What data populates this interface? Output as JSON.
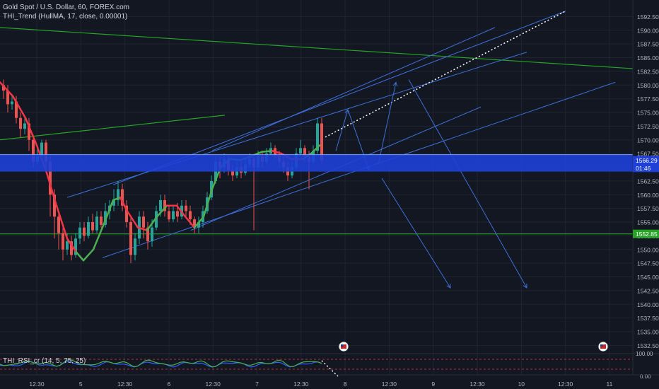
{
  "legend": {
    "symbol": "Gold Spot / U.S. Dollar, 60, FOREX.com",
    "indicator": "THI_Trend (HullMA, 17, close, 0.00001)",
    "rsi": "THI_RSI_cr (14, 5, 75, 25)"
  },
  "colors": {
    "background": "#131722",
    "grid": "#1f2433",
    "up": "#26a69a",
    "down": "#ef5350",
    "hull_up": "#4caf50",
    "hull_down": "#f23645",
    "channel": "#3d6fd6",
    "zone": "#1e40d8",
    "green_line": "#27a327",
    "rsi_blue": "#2962ff",
    "rsi_green": "#4caf50"
  },
  "chart_data": {
    "type": "candlestick",
    "y_range": [
      1531,
      1595
    ],
    "y_ticks": [
      "1592.50",
      "1590.00",
      "1587.50",
      "1585.00",
      "1582.50",
      "1580.00",
      "1577.50",
      "1575.00",
      "1572.50",
      "1570.00",
      "1567.50",
      "1565.00",
      "1562.50",
      "1560.00",
      "1557.50",
      "1555.00",
      "1552.50",
      "1550.00",
      "1547.50",
      "1545.00",
      "1542.50",
      "1540.00",
      "1537.50",
      "1535.00",
      "1532.50"
    ],
    "x_ticks": [
      "12:30",
      "5",
      "12:30",
      "6",
      "12:30",
      "7",
      "12:30",
      "8",
      "12:30",
      "9",
      "12:30",
      "10",
      "12:30",
      "11"
    ],
    "price_labels": [
      {
        "text": "1566.29",
        "value": 1566.29
      },
      {
        "text": "01:46",
        "value": 1564.9
      },
      {
        "text": "1552.85",
        "value": 1552.85
      }
    ],
    "rsi_axis_label": "100.00",
    "rsi_axis_label_low": "0.00",
    "candles": [
      [
        1580,
        1579,
        1577.5,
        1581
      ],
      [
        1579,
        1576.5,
        1575,
        1580
      ],
      [
        1576.5,
        1577,
        1575.5,
        1578
      ],
      [
        1577,
        1574,
        1573,
        1578
      ],
      [
        1574,
        1572,
        1570.5,
        1575
      ],
      [
        1572,
        1573,
        1571,
        1574
      ],
      [
        1573,
        1570,
        1568,
        1574
      ],
      [
        1570,
        1566,
        1565,
        1571
      ],
      [
        1566,
        1567,
        1565.5,
        1568.5
      ],
      [
        1567,
        1569.5,
        1566.5,
        1570
      ],
      [
        1569.5,
        1566,
        1564,
        1570
      ],
      [
        1566,
        1560,
        1556,
        1567
      ],
      [
        1560,
        1556,
        1552,
        1561
      ],
      [
        1556,
        1553,
        1550,
        1557
      ],
      [
        1553,
        1550,
        1548,
        1554
      ],
      [
        1550,
        1551.5,
        1549,
        1553
      ],
      [
        1551.5,
        1549,
        1548,
        1552.5
      ],
      [
        1549,
        1552,
        1548.5,
        1553
      ],
      [
        1552,
        1554,
        1551,
        1555
      ],
      [
        1554,
        1552.5,
        1551.5,
        1555
      ],
      [
        1552.5,
        1555,
        1552,
        1556
      ],
      [
        1555,
        1553.5,
        1553,
        1556.5
      ],
      [
        1553.5,
        1556,
        1553,
        1557
      ],
      [
        1556,
        1554.5,
        1554,
        1557
      ],
      [
        1554.5,
        1557,
        1554,
        1558.5
      ],
      [
        1557,
        1558,
        1555.5,
        1559
      ],
      [
        1558,
        1559,
        1557,
        1561
      ],
      [
        1559,
        1561,
        1558,
        1562.5
      ],
      [
        1561,
        1558,
        1557,
        1562
      ],
      [
        1558,
        1555,
        1554,
        1559
      ],
      [
        1555,
        1549,
        1547.5,
        1556
      ],
      [
        1549,
        1552,
        1548,
        1553
      ],
      [
        1552,
        1556,
        1551,
        1557
      ],
      [
        1556,
        1554,
        1552,
        1557
      ],
      [
        1554,
        1551.5,
        1550,
        1555
      ],
      [
        1551.5,
        1554,
        1550.5,
        1555.5
      ],
      [
        1554,
        1557,
        1553.5,
        1558
      ],
      [
        1557,
        1559,
        1556,
        1560
      ],
      [
        1559,
        1557,
        1556,
        1560
      ],
      [
        1557,
        1555.5,
        1555,
        1558
      ],
      [
        1555.5,
        1557,
        1555,
        1558
      ],
      [
        1557,
        1556,
        1555,
        1558.5
      ],
      [
        1556,
        1558,
        1555.5,
        1559
      ],
      [
        1558,
        1557,
        1556,
        1559
      ],
      [
        1557,
        1555.5,
        1554.5,
        1558
      ],
      [
        1555.5,
        1554,
        1553,
        1556
      ],
      [
        1554,
        1555,
        1553,
        1556
      ],
      [
        1555,
        1557,
        1554,
        1558
      ],
      [
        1557,
        1559.5,
        1556.5,
        1560.5
      ],
      [
        1559.5,
        1562.5,
        1559,
        1563.5
      ],
      [
        1562.5,
        1566,
        1562,
        1567
      ],
      [
        1566,
        1565,
        1563,
        1567
      ],
      [
        1565,
        1566.5,
        1564,
        1567.5
      ],
      [
        1566.5,
        1564.5,
        1563.5,
        1567
      ],
      [
        1564.5,
        1563.5,
        1562.5,
        1565.5
      ],
      [
        1563.5,
        1565,
        1563,
        1566.5
      ],
      [
        1565,
        1564,
        1563,
        1566
      ],
      [
        1564,
        1565.5,
        1563.5,
        1566.5
      ],
      [
        1565.5,
        1566.5,
        1565,
        1567.5
      ],
      [
        1566.5,
        1565,
        1553.5,
        1567
      ],
      [
        1565,
        1567,
        1564.5,
        1568
      ],
      [
        1567,
        1566,
        1565,
        1568
      ],
      [
        1566,
        1567.5,
        1565.5,
        1568.5
      ],
      [
        1567.5,
        1568.5,
        1567,
        1569.5
      ],
      [
        1568.5,
        1567,
        1566.5,
        1569
      ],
      [
        1567,
        1566,
        1565,
        1568
      ],
      [
        1566,
        1565,
        1564,
        1567
      ],
      [
        1565,
        1563.5,
        1562.5,
        1566
      ],
      [
        1563.5,
        1565,
        1563,
        1566
      ],
      [
        1565,
        1567.5,
        1564.5,
        1568.5
      ],
      [
        1567.5,
        1568.5,
        1567,
        1570
      ],
      [
        1568.5,
        1567,
        1566,
        1569
      ],
      [
        1567,
        1566,
        1561,
        1568
      ],
      [
        1566,
        1568,
        1565.5,
        1569
      ],
      [
        1568,
        1573,
        1567.5,
        1574
      ],
      [
        1573,
        1566.3,
        1565.5,
        1574
      ]
    ],
    "candle_x_start": 5,
    "candle_x_step": 6,
    "hull": [
      [
        0,
        1580.5
      ],
      [
        18,
        1578
      ],
      [
        36,
        1574
      ],
      [
        52,
        1569
      ],
      [
        66,
        1564
      ],
      [
        80,
        1558
      ],
      [
        95,
        1552
      ],
      [
        108,
        1549.5
      ],
      [
        118,
        1548
      ],
      [
        132,
        1550
      ],
      [
        148,
        1555
      ],
      [
        160,
        1559
      ],
      [
        170,
        1559.5
      ],
      [
        180,
        1557
      ],
      [
        195,
        1554
      ],
      [
        208,
        1553.5
      ],
      [
        222,
        1556
      ],
      [
        236,
        1558
      ],
      [
        250,
        1558
      ],
      [
        262,
        1556
      ],
      [
        275,
        1554
      ],
      [
        288,
        1556
      ],
      [
        300,
        1561
      ],
      [
        312,
        1565
      ],
      [
        325,
        1566.5
      ],
      [
        340,
        1566.3
      ],
      [
        355,
        1567
      ],
      [
        370,
        1567.8
      ],
      [
        385,
        1568
      ],
      [
        398,
        1567.5
      ],
      [
        412,
        1566.5
      ],
      [
        428,
        1566.5
      ],
      [
        440,
        1567.5
      ],
      [
        452,
        1569
      ]
    ],
    "hull_turns": [
      [
        0,
        108,
        "down"
      ],
      [
        108,
        170,
        "up"
      ],
      [
        170,
        208,
        "down"
      ],
      [
        208,
        236,
        "up"
      ],
      [
        236,
        275,
        "down"
      ],
      [
        275,
        385,
        "up"
      ],
      [
        385,
        425,
        "down"
      ],
      [
        425,
        452,
        "up"
      ]
    ],
    "channels": [
      [
        [
          145,
          1548.5
        ],
        [
          870,
          1580.5
        ]
      ],
      [
        [
          270,
          1553.5
        ],
        [
          680,
          1576
        ]
      ],
      [
        [
          95,
          1559.5
        ],
        [
          745,
          1586
        ]
      ],
      [
        [
          160,
          1561.8
        ],
        [
          800,
          1593.5
        ]
      ],
      [
        [
          300,
          1568
        ],
        [
          700,
          1590.5
        ]
      ]
    ],
    "arrows": [
      [
        [
          475,
          1568
        ],
        [
          492,
          1575.5
        ]
      ],
      [
        [
          492,
          1575.5
        ],
        [
          522,
          1564.5
        ]
      ],
      [
        [
          535,
          1565.5
        ],
        [
          560,
          1580.5
        ]
      ],
      [
        [
          578,
          1581
        ],
        [
          745,
          1543
        ]
      ],
      [
        [
          540,
          1563
        ],
        [
          637,
          1543
        ]
      ]
    ],
    "dotted_line": [
      [
        460,
        1570.5
      ],
      [
        800,
        1593.5
      ]
    ],
    "green_lines": [
      [
        [
          0,
          1590.5
        ],
        [
          895,
          1583
        ]
      ],
      [
        [
          0,
          1570
        ],
        [
          318,
          1574.5
        ]
      ],
      [
        [
          0,
          1552.85
        ],
        [
          895,
          1552.85
        ]
      ]
    ],
    "zone": [
      1564.2,
      1567.3
    ]
  }
}
